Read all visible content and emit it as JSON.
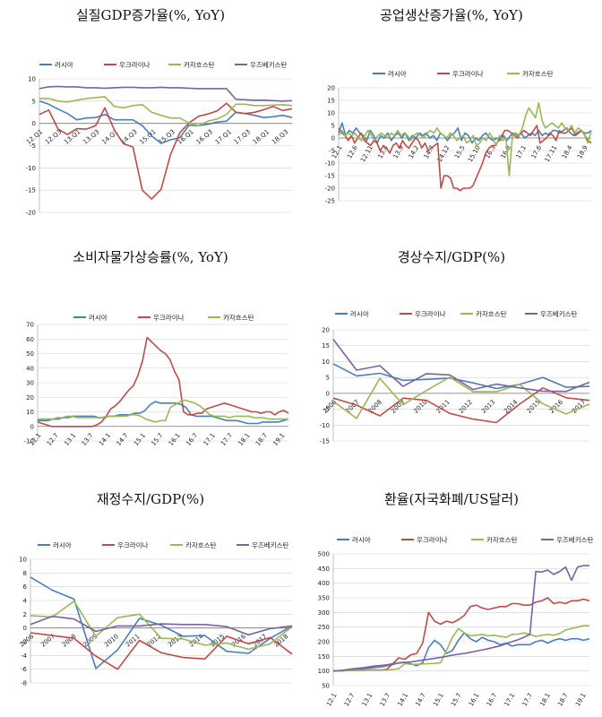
{
  "colors": {
    "russia": "#4a7ebb",
    "ukraine": "#be4b48",
    "kazakhstan": "#98b954",
    "uzbekistan": "#7d60a0"
  },
  "chart_data": [
    {
      "id": "gdp",
      "type": "line",
      "title": "실질GDP증가율(%, YoY)",
      "legend": [
        "러시아",
        "우크라이나",
        "카자흐스탄",
        "우즈베키스탄"
      ],
      "x_ticks": [
        "12.Q1",
        "12.Q3",
        "13.Q1",
        "13.Q3",
        "14.Q1",
        "14.Q3",
        "15.Q1",
        "15.Q3",
        "16.Q1",
        "16.Q3",
        "17.Q1",
        "17.Q3",
        "18.Q1",
        "18.Q3"
      ],
      "ylim": [
        -20,
        10
      ],
      "y_ticks": [
        10,
        5,
        0,
        -5,
        -10,
        -15,
        -20
      ],
      "series": [
        {
          "name": "러시아",
          "values": [
            5.0,
            4.3,
            3.2,
            2.2,
            0.8,
            1.2,
            1.3,
            2.0,
            0.8,
            0.8,
            0.8,
            -0.5,
            -2.8,
            -4.5,
            -3.7,
            -3.2,
            -0.4,
            -0.5,
            -0.2,
            0.3,
            0.5,
            2.5,
            2.2,
            1.8,
            1.3,
            1.5,
            1.8,
            1.3
          ]
        },
        {
          "name": "우크라이나",
          "values": [
            2.0,
            3.0,
            -1.3,
            -2.5,
            -1.2,
            -1.3,
            -0.5,
            3.5,
            -1.5,
            -4.6,
            -5.3,
            -15.0,
            -17.0,
            -14.8,
            -7.1,
            -2.1,
            0.1,
            1.6,
            2.1,
            2.8,
            4.5,
            2.5,
            2.2,
            2.5,
            3.1,
            3.8,
            2.9,
            3.3
          ]
        },
        {
          "name": "카자흐스탄",
          "values": [
            5.6,
            5.6,
            5.0,
            4.8,
            5.2,
            5.6,
            5.8,
            6.0,
            3.8,
            3.5,
            4.0,
            4.2,
            2.5,
            1.8,
            1.2,
            1.2,
            0.1,
            -0.5,
            0.5,
            1.0,
            2.0,
            4.3,
            4.3,
            4.0,
            4.0,
            4.1,
            4.2,
            4.0
          ]
        },
        {
          "name": "우즈베키스탄",
          "values": [
            7.8,
            8.2,
            8.3,
            8.2,
            8.2,
            8.0,
            8.0,
            7.9,
            8.0,
            8.1,
            8.1,
            8.0,
            8.0,
            8.1,
            8.0,
            8.0,
            7.9,
            7.8,
            7.8,
            7.8,
            7.8,
            5.4,
            5.3,
            5.2,
            5.2,
            5.1,
            5.0,
            5.1
          ]
        }
      ]
    },
    {
      "id": "ip",
      "type": "line",
      "title": "공업생산증가율(%, YoY)",
      "legend": [
        "러시아",
        "우크라이나",
        "카자흐스탄"
      ],
      "x_ticks": [
        "12.1",
        "12.6",
        "12.11",
        "13.4",
        "13.9",
        "14.2",
        "14.7",
        "14.12",
        "15.5",
        "15.10",
        "16.3",
        "16.8",
        "17.1",
        "17.6",
        "17.11",
        "18.4",
        "18.9"
      ],
      "ylim": [
        -25,
        20
      ],
      "y_ticks": [
        20,
        15,
        10,
        5,
        0,
        -5,
        -10,
        -15,
        -20,
        -25
      ],
      "series": [
        {
          "name": "러시아",
          "values": [
            2,
            6,
            1,
            3,
            2,
            4,
            2,
            1,
            -1,
            3,
            1,
            -2,
            1,
            0,
            2,
            -1,
            1,
            2,
            0,
            2,
            -1,
            1,
            0,
            2,
            1,
            2,
            0,
            1,
            -1,
            2,
            1,
            -1,
            1,
            2,
            4,
            -1,
            2,
            1,
            -2,
            0,
            -1,
            1,
            2,
            0,
            -1,
            0,
            -1,
            1,
            -1,
            1,
            2,
            1,
            2,
            0,
            1,
            2,
            1,
            3,
            1,
            2,
            1,
            3,
            3,
            2,
            3,
            4,
            2,
            1,
            2,
            3,
            2,
            2,
            3
          ]
        },
        {
          "name": "우크라이나",
          "values": [
            4,
            2,
            1,
            -1,
            1,
            -2,
            0,
            2,
            -1,
            -2,
            -3,
            -1,
            -2,
            -5,
            -3,
            -4,
            -6,
            -3,
            -2,
            -4,
            -1,
            -3,
            -4,
            -2,
            0,
            -1,
            -4,
            -2,
            -5,
            -4,
            -3,
            -2,
            -20,
            -15,
            -15,
            -16,
            -20,
            -20,
            -21,
            -20,
            -20,
            -20,
            -19,
            -16,
            -13,
            -10,
            -6,
            -4,
            -3,
            -3,
            -1,
            1,
            3,
            3,
            2,
            1,
            0,
            2,
            3,
            2,
            1,
            3,
            5,
            -2,
            -1,
            0,
            2,
            1,
            -1,
            3,
            2,
            2,
            3,
            4,
            1,
            2,
            3,
            1,
            -1,
            -2
          ]
        },
        {
          "name": "카자흐스탄",
          "values": [
            1,
            3,
            1,
            2,
            1,
            2,
            0,
            -1,
            1,
            3,
            1,
            -1,
            1,
            2,
            1,
            0,
            2,
            1,
            3,
            1,
            2,
            1,
            -1,
            1,
            2,
            1,
            0,
            2,
            3,
            2,
            4,
            2,
            1,
            0,
            2,
            1,
            -1,
            0,
            1,
            -2,
            -1,
            1,
            -3,
            -2,
            0,
            -1,
            2,
            0,
            -3,
            1,
            -1,
            0,
            -15,
            1,
            2,
            1,
            4,
            9,
            12,
            10,
            8,
            14,
            7,
            4,
            5,
            6,
            5,
            4,
            6,
            4,
            3,
            5,
            2,
            4,
            3,
            1,
            -2,
            3
          ]
        }
      ]
    },
    {
      "id": "cpi",
      "type": "line",
      "title": "소비자물가상승률(%, YoY)",
      "legend": [
        "러시아",
        "우크라이나",
        "카자흐스탄"
      ],
      "x_ticks": [
        "12.1",
        "12.7",
        "13.1",
        "13.7",
        "14.1",
        "14.7",
        "15.1",
        "15.7",
        "16.1",
        "16.7",
        "17.1",
        "17.7",
        "18.1",
        "18.7",
        "19.1"
      ],
      "ylim": [
        -10,
        70
      ],
      "y_ticks": [
        70,
        60,
        50,
        40,
        30,
        20,
        10,
        0,
        -10
      ],
      "series": [
        {
          "name": "러시아",
          "values": [
            4,
            4,
            4,
            5,
            5,
            6,
            6,
            7,
            7,
            7,
            7,
            7,
            6,
            6,
            7,
            7,
            8,
            8,
            8,
            9,
            9,
            11,
            15,
            17,
            16,
            16,
            16,
            16,
            15,
            13,
            8,
            7,
            7,
            7,
            7,
            6,
            5,
            4,
            4,
            4,
            3,
            2,
            2,
            2,
            3,
            3,
            3,
            3,
            4,
            5
          ]
        },
        {
          "name": "우크라이나",
          "values": [
            3,
            2,
            1,
            0,
            0,
            0,
            0,
            0,
            0,
            0,
            0,
            0,
            0,
            1,
            3,
            7,
            12,
            14,
            17,
            21,
            25,
            28,
            35,
            45,
            61,
            58,
            55,
            52,
            50,
            46,
            38,
            32,
            10,
            8,
            8,
            9,
            9,
            12,
            13,
            14,
            15,
            16,
            15,
            14,
            13,
            12,
            11,
            10,
            10,
            9,
            10,
            10,
            8,
            10,
            11,
            9
          ]
        },
        {
          "name": "카자흐스탄",
          "values": [
            5,
            5,
            5,
            5,
            6,
            6,
            7,
            7,
            6,
            6,
            6,
            6,
            6,
            6,
            7,
            7,
            7,
            7,
            7,
            8,
            8,
            7,
            5,
            4,
            3,
            4,
            4,
            13,
            15,
            17,
            18,
            17,
            16,
            14,
            11,
            8,
            7,
            7,
            7,
            6,
            7,
            7,
            7,
            7,
            6,
            6,
            6,
            5,
            5,
            5,
            5,
            5
          ]
        }
      ]
    },
    {
      "id": "ca",
      "type": "line",
      "title": "경상수지/GDP(%)",
      "legend": [
        "러시아",
        "우크라이나",
        "카자흐스탄",
        "우즈베키스탄"
      ],
      "x_ticks": [
        "2006",
        "2007",
        "2008",
        "2009",
        "2010",
        "2011",
        "2012",
        "2013",
        "2014",
        "2015",
        "2016",
        "2017"
      ],
      "ylim": [
        -15,
        20
      ],
      "y_ticks": [
        20,
        15,
        10,
        5,
        0,
        -5,
        -10,
        -15
      ],
      "series": [
        {
          "name": "러시아",
          "values": [
            9.3,
            5.5,
            6.3,
            4.1,
            4.4,
            4.8,
            3.3,
            1.5,
            2.8,
            5.0,
            1.9,
            2.2
          ]
        },
        {
          "name": "우크라이나",
          "values": [
            -1.5,
            -3.7,
            -7.1,
            -1.5,
            -2.2,
            -6.3,
            -8.1,
            -9.2,
            -3.4,
            1.7,
            -1.4,
            -2.2
          ]
        },
        {
          "name": "카자흐스탄",
          "values": [
            -2.5,
            -7.9,
            4.7,
            -3.6,
            0.9,
            5.1,
            0.5,
            0.5,
            2.8,
            -3.3,
            -6.5,
            -3.4
          ]
        },
        {
          "name": "우즈베키스탄",
          "values": [
            17.0,
            7.3,
            8.7,
            2.2,
            6.2,
            5.8,
            1.2,
            2.9,
            1.7,
            0.7,
            0.6,
            3.5
          ]
        }
      ]
    },
    {
      "id": "fiscal",
      "type": "line",
      "title": "재정수지/GDP(%)",
      "legend": [
        "러시아",
        "우크라이나",
        "카자흐스탄",
        "우즈베키스탄"
      ],
      "x_ticks": [
        "2006",
        "2007",
        "2008",
        "2009",
        "2010",
        "2011",
        "2012",
        "2013",
        "2014",
        "2015",
        "2016",
        "2017",
        "2018"
      ],
      "ylim": [
        -8,
        10
      ],
      "y_ticks": [
        10,
        8,
        6,
        4,
        2,
        0,
        -2,
        -4,
        -6,
        -8
      ],
      "series": [
        {
          "name": "러시아",
          "values": [
            7.4,
            5.5,
            4.2,
            -5.9,
            -3.2,
            1.4,
            0.4,
            -1.2,
            -1.1,
            -3.4,
            -3.7,
            -1.5,
            0.3
          ]
        },
        {
          "name": "우크라이나",
          "values": [
            -0.7,
            -1.1,
            -1.5,
            -4.1,
            -6.0,
            -1.8,
            -3.6,
            -4.3,
            -4.5,
            -1.2,
            -2.3,
            -1.4,
            -3.8
          ]
        },
        {
          "name": "카자흐스탄",
          "values": [
            1.8,
            1.6,
            3.9,
            -1.2,
            1.5,
            2.0,
            -1.5,
            -1.6,
            -2.5,
            -2.2,
            -3.1,
            -2.3,
            0.2
          ]
        },
        {
          "name": "우즈베키스탄",
          "values": [
            0.5,
            1.7,
            1.3,
            -0.5,
            0.3,
            0.3,
            0.6,
            0.5,
            0.5,
            0.2,
            -1.0,
            -0.1,
            0.3
          ]
        }
      ]
    },
    {
      "id": "fx",
      "type": "line",
      "title": "환율(자국화폐/US달러)",
      "legend": [
        "러시아",
        "우크라이나",
        "카자흐스탄",
        "우즈베키스탄"
      ],
      "x_ticks": [
        "12.1",
        "12.7",
        "13.1",
        "13.7",
        "14.1",
        "14.7",
        "15.1",
        "15.7",
        "16.1",
        "16.7",
        "17.1",
        "17.7",
        "18.1",
        "18.7",
        "19.1"
      ],
      "ylim": [
        50,
        500
      ],
      "y_ticks": [
        500,
        450,
        400,
        350,
        300,
        250,
        200,
        150,
        100,
        50
      ],
      "series": [
        {
          "name": "러시아",
          "values": [
            100,
            100,
            103,
            105,
            106,
            108,
            110,
            112,
            114,
            118,
            122,
            128,
            130,
            125,
            118,
            128,
            180,
            205,
            190,
            160,
            170,
            205,
            230,
            210,
            200,
            215,
            205,
            200,
            190,
            195,
            185,
            190,
            190,
            190,
            200,
            205,
            195,
            205,
            210,
            205,
            210,
            210,
            205,
            210
          ]
        },
        {
          "name": "우크라이나",
          "values": [
            100,
            100,
            101,
            102,
            102,
            103,
            104,
            104,
            104,
            106,
            125,
            145,
            140,
            155,
            160,
            195,
            300,
            270,
            260,
            270,
            265,
            275,
            290,
            320,
            325,
            315,
            310,
            315,
            320,
            320,
            330,
            330,
            325,
            325,
            335,
            340,
            350,
            330,
            335,
            330,
            340,
            340,
            345,
            340
          ]
        },
        {
          "name": "카자흐스탄",
          "values": [
            100,
            100,
            101,
            101,
            102,
            102,
            103,
            103,
            104,
            104,
            105,
            108,
            125,
            123,
            123,
            124,
            125,
            126,
            128,
            170,
            215,
            245,
            230,
            220,
            222,
            225,
            220,
            222,
            218,
            215,
            225,
            226,
            230,
            225,
            218,
            222,
            225,
            222,
            228,
            240,
            245,
            250,
            255,
            255
          ]
        },
        {
          "name": "우즈베키스탄",
          "values": [
            100,
            101,
            104,
            107,
            109,
            111,
            114,
            117,
            119,
            121,
            125,
            127,
            129,
            131,
            134,
            137,
            140,
            143,
            146,
            150,
            154,
            157,
            160,
            164,
            168,
            172,
            176,
            181,
            186,
            193,
            200,
            207,
            215,
            225,
            440,
            438,
            445,
            430,
            440,
            455,
            410,
            455,
            460,
            460
          ]
        }
      ]
    }
  ]
}
